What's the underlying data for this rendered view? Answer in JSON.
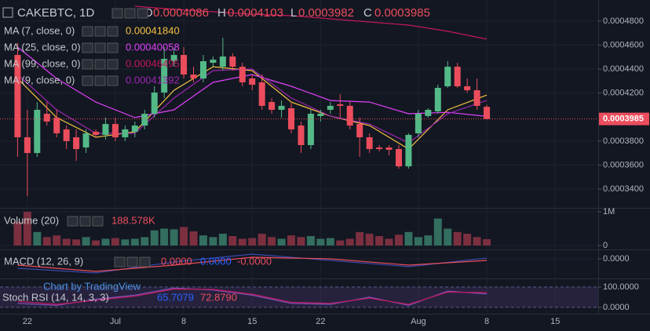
{
  "chart_data": [
    {
      "type": "candlestick",
      "symbol": "CAKEBTC, 1D",
      "ohlc_letters": [
        "O",
        "H",
        "L",
        "C"
      ],
      "up_color": "#53b987",
      "down_color": "#eb4d5c",
      "x": [
        0,
        1,
        2,
        3,
        4,
        5,
        6,
        7,
        8,
        9,
        10,
        11,
        12,
        13,
        14,
        15,
        16,
        17,
        18,
        19,
        20,
        21,
        22,
        23,
        24,
        25,
        26,
        27,
        28,
        29,
        30,
        31,
        32,
        33,
        34,
        35,
        36,
        37,
        38,
        39,
        40,
        41,
        42,
        43,
        44,
        45,
        46,
        47,
        48
      ],
      "open": [
        0.0004518,
        0.0003832,
        0.0003701,
        0.0004028,
        0.0003996,
        0.0003898,
        0.0003832,
        0.0003747,
        0.0003878,
        0.0003852,
        0.0003943,
        0.0003832,
        0.0003878,
        0.000393,
        0.0004028,
        0.0004205,
        0.0004466,
        0.0004518,
        0.0004355,
        0.0004322,
        0.0004453,
        0.000442,
        0.0004505,
        0.000442,
        0.0004322,
        0.000429,
        0.0004126,
        0.0004061,
        0.0004074,
        0.000393,
        0.0003767,
        0.0004009,
        0.0004061,
        0.0004107,
        0.0004094,
        0.0003943,
        0.0003832,
        0.0003747,
        0.0003747,
        0.0003734,
        0.000359,
        0.0003865,
        0.0004009,
        0.0004048,
        0.0004257,
        0.000442,
        0.0004257,
        0.0004224,
        0.0004086
      ],
      "high": [
        0.0004617,
        0.0004061,
        0.0004126,
        0.0004126,
        0.0004061,
        0.000393,
        0.0003898,
        0.0003898,
        0.0003898,
        0.0003996,
        0.0003996,
        0.000393,
        0.0003963,
        0.0004061,
        0.0004257,
        0.0004584,
        0.0004571,
        0.0004584,
        0.000442,
        0.0004518,
        0.0004505,
        0.0004662,
        0.0004532,
        0.0004453,
        0.0004355,
        0.0004355,
        0.0004159,
        0.0004139,
        0.0004126,
        0.0003963,
        0.0004061,
        0.0004061,
        0.0004126,
        0.0004192,
        0.0004126,
        0.0003996,
        0.0003865,
        0.0003767,
        0.0003767,
        0.0003767,
        0.0003865,
        0.0004061,
        0.0004074,
        0.000427,
        0.0004466,
        0.0004453,
        0.0004322,
        0.0004322,
        0.0004103
      ],
      "low": [
        0.0003669,
        0.0003342,
        0.0003669,
        0.000393,
        0.0003832,
        0.0003734,
        0.0003636,
        0.0003701,
        0.0003832,
        0.0003813,
        0.00038,
        0.00038,
        0.0003832,
        0.0003898,
        0.0003996,
        0.0004159,
        0.000442,
        0.0004322,
        0.000429,
        0.000429,
        0.000442,
        0.0004388,
        0.0004388,
        0.0004257,
        0.0004224,
        0.0004061,
        0.0004028,
        0.0003996,
        0.0003865,
        0.0003701,
        0.0003734,
        0.0003963,
        0.0004028,
        0.0003996,
        0.0003898,
        0.0003669,
        0.0003701,
        0.0003715,
        0.0003682,
        0.0003571,
        0.0003571,
        0.0003832,
        0.0003996,
        0.0004028,
        0.0004244,
        0.0004244,
        0.0004205,
        0.0004061,
        0.0003982
      ],
      "close": [
        0.0003832,
        0.0003701,
        0.0004061,
        0.0003963,
        0.0003865,
        0.00038,
        0.0003734,
        0.0003865,
        0.0003852,
        0.0003943,
        0.0003832,
        0.0003898,
        0.000393,
        0.0004028,
        0.0004205,
        0.0004486,
        0.0004518,
        0.0004355,
        0.0004322,
        0.0004466,
        0.0004479,
        0.0004505,
        0.000442,
        0.000429,
        0.000427,
        0.0004094,
        0.0004061,
        0.0004094,
        0.0003898,
        0.0003767,
        0.0004028,
        0.0004028,
        0.0004094,
        0.0004094,
        0.000393,
        0.0003832,
        0.0003734,
        0.0003734,
        0.0003728,
        0.000359,
        0.0003852,
        0.0004028,
        0.0004061,
        0.0004244,
        0.000442,
        0.0004257,
        0.0004224,
        0.0004094,
        0.0003985
      ],
      "series": [
        {
          "name": "MA (7, close, 0)",
          "color": "#f5c342",
          "value_label": "0.00041840",
          "x": [
            0,
            4,
            8,
            12,
            16,
            20,
            24,
            28,
            32,
            36,
            40,
            44,
            48
          ],
          "values": [
            0.0004322,
            0.0003996,
            0.0003832,
            0.0003878,
            0.0004224,
            0.000442,
            0.0004388,
            0.0004126,
            0.0004009,
            0.000393,
            0.0003734,
            0.0004061,
            0.0004184
          ]
        },
        {
          "name": "MA (25, close, 0)",
          "color": "#e040fb",
          "value_label": "0.00040058",
          "x": [
            0,
            4,
            8,
            12,
            16,
            20,
            24,
            28,
            32,
            36,
            40,
            44,
            48
          ],
          "values": [
            0.0004584,
            0.0004322,
            0.0004126,
            0.0003996,
            0.0004061,
            0.000429,
            0.0004355,
            0.0004257,
            0.0004139,
            0.0004126,
            0.0004028,
            0.000404,
            0.0004006
          ]
        },
        {
          "name": "MA (99, close, 0)",
          "color": "#c2185b",
          "value_label": "0.00046495",
          "x": [
            12,
            16,
            20,
            24,
            28,
            32,
            36,
            40,
            44,
            48
          ],
          "values": [
            0.0004924,
            0.0004898,
            0.0004878,
            0.0004858,
            0.0004845,
            0.0004819,
            0.0004793,
            0.0004767,
            0.0004715,
            0.000465
          ]
        },
        {
          "name": "MA (9, close, 0)",
          "color": "#9c27b0",
          "value_label": "0.00041392",
          "x": [
            0,
            4,
            8,
            12,
            16,
            20,
            24,
            28,
            32,
            36,
            40,
            44,
            48
          ],
          "values": [
            0.0004355,
            0.0004061,
            0.0003865,
            0.0003865,
            0.0004159,
            0.0004388,
            0.0004401,
            0.0004159,
            0.0004009,
            0.0003943,
            0.0003786,
            0.0004028,
            0.0004139
          ]
        }
      ],
      "xlim": [
        -1.8,
        59.4
      ],
      "xticks": [
        {
          "value": 1,
          "label": "22"
        },
        {
          "value": 10,
          "label": "Jul"
        },
        {
          "value": 17,
          "label": "8"
        },
        {
          "value": 24,
          "label": "15"
        },
        {
          "value": 31,
          "label": "22"
        },
        {
          "value": 41,
          "label": "Aug"
        },
        {
          "value": 48,
          "label": "8"
        },
        {
          "value": 55,
          "label": "15"
        }
      ],
      "ylim": [
        0.0003244,
        0.0004976
      ],
      "yticks": [
        {
          "value": 0.00048,
          "label": "0.0004800"
        },
        {
          "value": 0.00046,
          "label": "0.0004600"
        },
        {
          "value": 0.00044,
          "label": "0.0004400"
        },
        {
          "value": 0.00042,
          "label": "0.0004200"
        },
        {
          "value": 0.00038,
          "label": "0.0003800"
        },
        {
          "value": 0.00036,
          "label": "0.0003600"
        },
        {
          "value": 0.00034,
          "label": "0.0003400"
        }
      ],
      "grid": true
    },
    {
      "type": "bar",
      "title": "Volume (20)",
      "value_label": "188.578K",
      "color": "#eb4d5c",
      "values": [
        700000,
        1000000,
        400000,
        250000,
        300000,
        200000,
        180000,
        250000,
        150000,
        200000,
        220000,
        180000,
        200000,
        250000,
        450000,
        500000,
        480000,
        550000,
        420000,
        300000,
        250000,
        350000,
        280000,
        200000,
        220000,
        350000,
        250000,
        200000,
        300000,
        250000,
        280000,
        200000,
        220000,
        150000,
        200000,
        400000,
        350000,
        280000,
        200000,
        320000,
        400000,
        250000,
        300000,
        800000,
        500000,
        400000,
        350000,
        250000,
        188578
      ],
      "up_color": "#336e5f",
      "down_color": "#7b2f3f",
      "ylim": [
        -116000,
        1093000
      ],
      "yticks": [
        {
          "value": 1000000,
          "label": "1M"
        },
        0
      ]
    },
    {
      "type": "line",
      "title": "MACD (12, 26, 9)",
      "legend_labels": [
        "0.0000",
        "0.0000",
        "-0.0000"
      ],
      "legend_colors": [
        "#eb4d5c",
        "#2962ff",
        "#eb4d5c"
      ],
      "series": [
        {
          "color": "#3949ab",
          "x": [
            0,
            8,
            16,
            24,
            32,
            40,
            48
          ],
          "values": [
            -6e-06,
            -9e-06,
            -2e-06,
            3e-06,
            -1e-06,
            -5e-06,
            5e-07
          ]
        },
        {
          "color": "#eb4d5c",
          "x": [
            0,
            8,
            16,
            24,
            32,
            40,
            48
          ],
          "values": [
            -4e-06,
            -8e-06,
            -4e-06,
            1e-06,
            0,
            -4e-06,
            -1e-06
          ]
        }
      ],
      "ylim": [
        -1.25e-05,
        5.5e-06
      ],
      "yticks": [
        {
          "value": 0,
          "label": "0.0000"
        }
      ]
    },
    {
      "type": "line",
      "title": "Stoch RSI (14, 14, 3, 3)",
      "watermark": "Chart by TradingView",
      "legend_labels": [
        "65.7079",
        "72.8790"
      ],
      "legend_colors": [
        "#2962ff",
        "#eb4d5c"
      ],
      "series": [
        {
          "color": "#7e57c2",
          "x": [
            0,
            4,
            8,
            12,
            16,
            20,
            24,
            28,
            32,
            36,
            40,
            44,
            48
          ],
          "values": [
            20,
            10,
            40,
            60,
            95,
            85,
            60,
            20,
            15,
            50,
            10,
            80,
            65.7079
          ]
        },
        {
          "color": "#c2185b",
          "x": [
            0,
            4,
            8,
            12,
            16,
            20,
            24,
            28,
            32,
            36,
            40,
            44,
            48
          ],
          "values": [
            30,
            15,
            35,
            55,
            90,
            88,
            65,
            25,
            20,
            45,
            15,
            75,
            72.879
          ]
        }
      ],
      "ylim": [
        -31,
        138
      ],
      "yticks": [
        {
          "value": 100,
          "label": "100.0000"
        },
        {
          "value": 0,
          "label": "0.0000"
        }
      ]
    }
  ]
}
